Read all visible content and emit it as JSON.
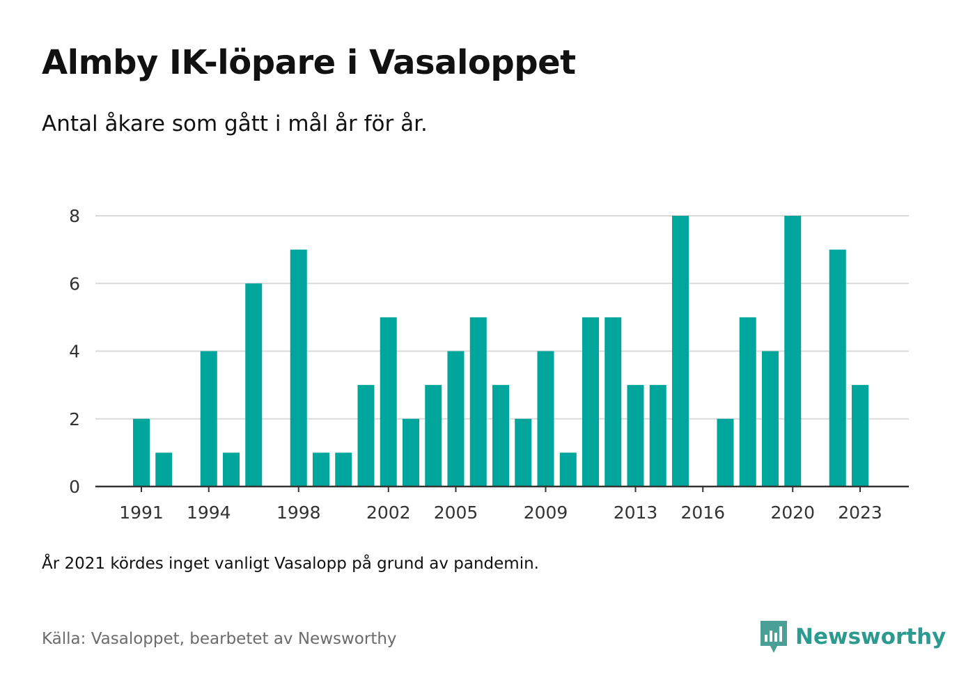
{
  "title": "Almby IK-löpare i Vasaloppet",
  "subtitle": "Antal åkare som gått i mål år för år.",
  "note": "År 2021 kördes inget vanligt Vasalopp på grund av pandemin.",
  "source": "Källa: Vasaloppet, bearbetet av Newsworthy",
  "brand": {
    "name": "Newsworthy",
    "logo_icon": "newsworthy-logo-icon"
  },
  "colors": {
    "bar": "#00a69c",
    "grid": "#d9d9d9",
    "axis": "#333333",
    "brand": "#2c9a8e"
  },
  "chart_data": {
    "type": "bar",
    "categories": [
      1991,
      1992,
      1993,
      1994,
      1995,
      1996,
      1997,
      1998,
      1999,
      2000,
      2001,
      2002,
      2003,
      2004,
      2005,
      2006,
      2007,
      2008,
      2009,
      2010,
      2011,
      2012,
      2013,
      2014,
      2015,
      2016,
      2017,
      2018,
      2019,
      2020,
      2021,
      2022,
      2023
    ],
    "values": [
      2,
      1,
      0,
      4,
      1,
      6,
      0,
      7,
      1,
      1,
      3,
      5,
      2,
      3,
      4,
      5,
      3,
      2,
      4,
      1,
      5,
      5,
      3,
      3,
      8,
      0,
      2,
      5,
      4,
      8,
      0,
      7,
      3
    ],
    "x_tick_labels": [
      "1991",
      "1994",
      "1998",
      "2002",
      "2005",
      "2009",
      "2013",
      "2016",
      "2020",
      "2023"
    ],
    "y_ticks": [
      0,
      2,
      4,
      6,
      8
    ],
    "ylim": [
      0,
      8
    ],
    "xlabel": "",
    "ylabel": "",
    "grid": true
  }
}
